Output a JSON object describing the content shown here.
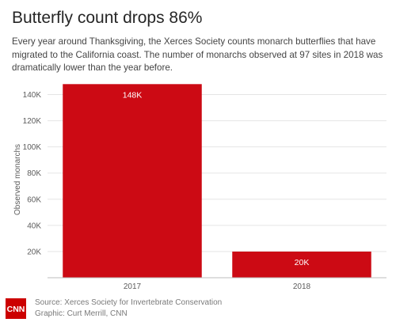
{
  "header": {
    "title": "Butterfly count drops 86%",
    "subtitle": "Every year around Thanksgiving, the Xerces Society counts monarch butterflies that have migrated to the California coast. The number of monarchs observed at 97 sites in 2018 was dramatically lower than the year before."
  },
  "chart_data": {
    "type": "bar",
    "title": "Butterfly count drops 86%",
    "xlabel": "",
    "ylabel": "Observed monarchs",
    "categories": [
      "2017",
      "2018"
    ],
    "values": [
      148000,
      20000
    ],
    "data_labels": [
      "148K",
      "20K"
    ],
    "ylim": [
      0,
      150000
    ],
    "yticks": [
      20000,
      40000,
      60000,
      80000,
      100000,
      120000,
      140000
    ],
    "ytick_labels": [
      "20K",
      "40K",
      "60K",
      "80K",
      "100K",
      "120K",
      "140K"
    ],
    "grid": true,
    "legend": "none",
    "bar_color": "#cc0a14",
    "gridline_color": "#e5e5e5"
  },
  "footer": {
    "source": "Source: Xerces Society for Invertebrate Conservation",
    "credit": "Graphic: Curt Merrill, CNN",
    "logo_text": "CNN",
    "logo_color": "#cc0000"
  }
}
